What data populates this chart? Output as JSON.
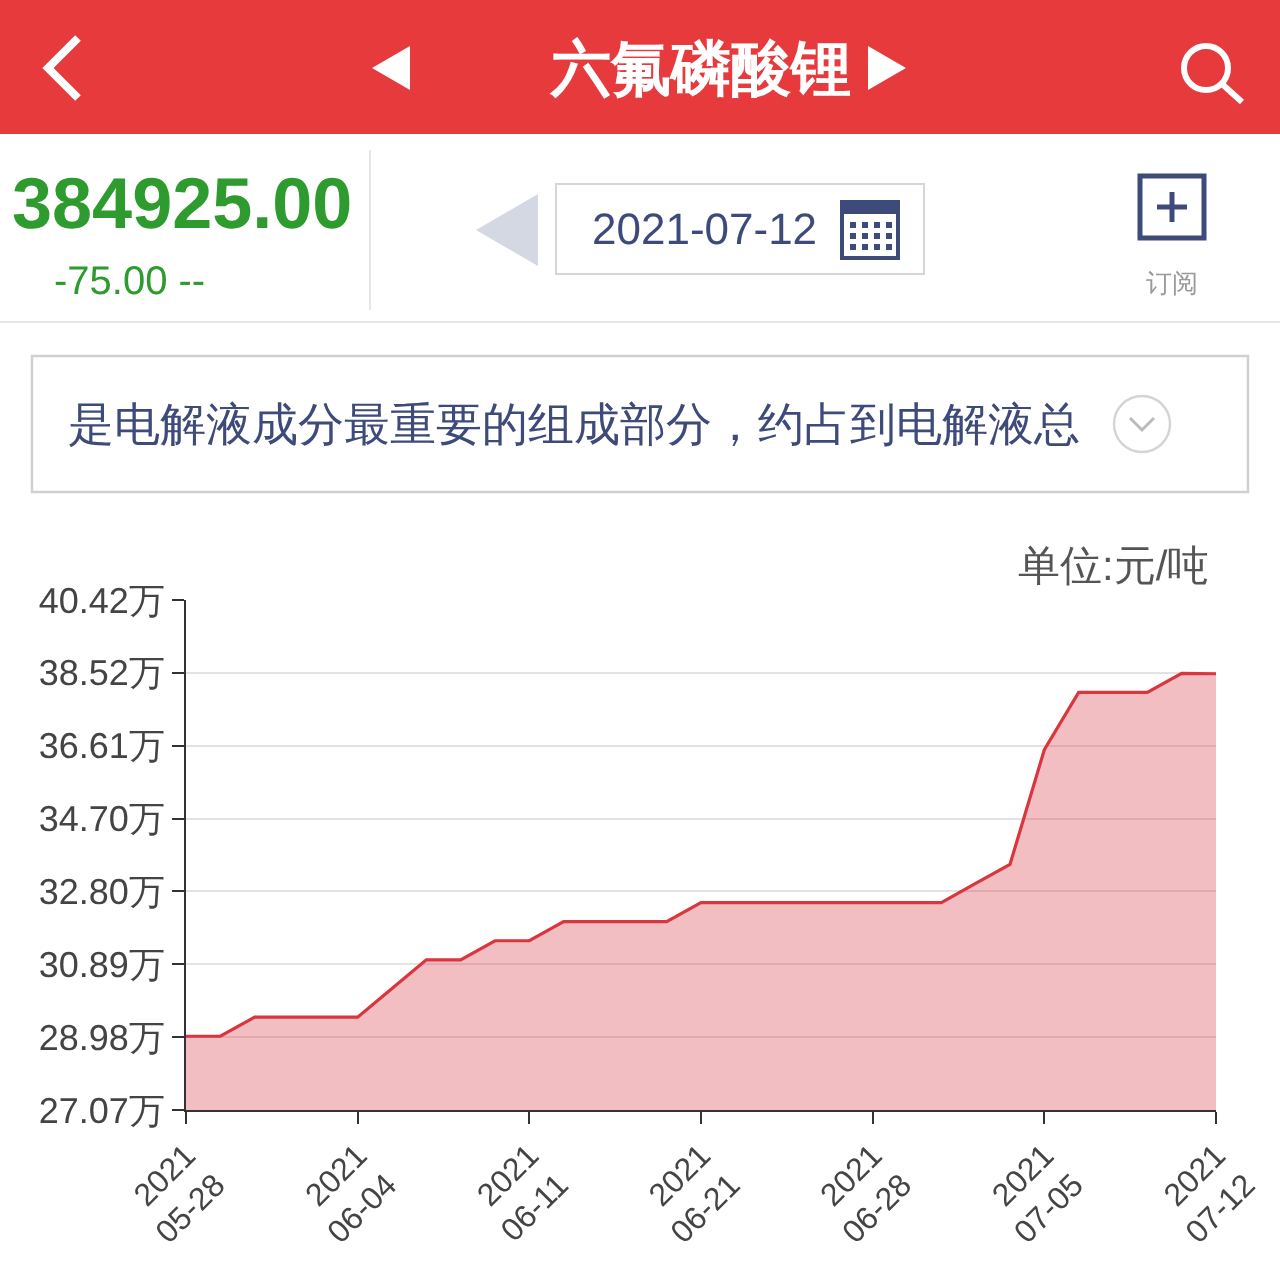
{
  "chart_data": {
    "type": "area",
    "title": "六氟磷酸锂",
    "ylabel": "单位:元/吨",
    "annotations": [
      "384925.00",
      "-75.00 --",
      "2021-07-12",
      "订阅",
      "是电解液成分最重要的组成部分，约占到电解液总"
    ],
    "categories": [
      "2021\n05-28",
      null,
      null,
      null,
      null,
      "2021\n06-04",
      null,
      null,
      null,
      null,
      "2021\n06-11",
      null,
      null,
      null,
      null,
      "2021\n06-21",
      null,
      null,
      null,
      null,
      "2021\n06-28",
      null,
      null,
      null,
      null,
      "2021\n07-05",
      null,
      null,
      null,
      null,
      "2021\n07-12"
    ],
    "values": [
      29.0,
      29.0,
      29.5,
      29.5,
      29.5,
      29.5,
      30.25,
      31.0,
      31.0,
      31.5,
      31.5,
      32.0,
      32.0,
      32.0,
      32.0,
      32.5,
      32.5,
      32.5,
      32.5,
      32.5,
      32.5,
      32.5,
      32.5,
      33.0,
      33.5,
      36.5,
      38.0,
      38.0,
      38.0,
      38.5,
      38.49
    ],
    "color": "#d9363e",
    "ylim": [
      27.07,
      40.42
    ],
    "yticks": [
      {
        "value": 27.07,
        "label": "27.07万"
      },
      {
        "value": 28.98,
        "label": "28.98万"
      },
      {
        "value": 30.89,
        "label": "30.89万"
      },
      {
        "value": 32.8,
        "label": "32.80万"
      },
      {
        "value": 34.7,
        "label": "34.70万"
      },
      {
        "value": 36.61,
        "label": "36.61万"
      },
      {
        "value": 38.52,
        "label": "38.52万"
      },
      {
        "value": 40.42,
        "label": "40.42万"
      }
    ],
    "grid": "y"
  }
}
